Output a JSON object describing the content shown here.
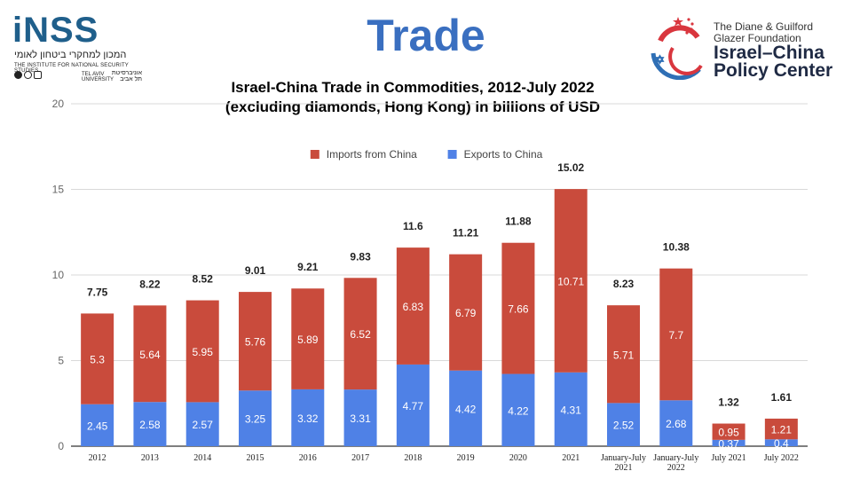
{
  "slide": {
    "heading": "Trade",
    "left_logo": {
      "mark": "iNSS",
      "hebrew": "המכון למחקרי ביטחון לאומי",
      "english": "THE INSTITUTE FOR NATIONAL SECURITY STUDIES",
      "university_en": "TEL AVIV UNIVERSITY",
      "university_he": "אוניברסיטת תל אביב"
    },
    "right_logo": {
      "foundation_line1": "The Diane & Guilford",
      "foundation_line2": "Glazer Foundation",
      "name_line1": "Israel–China",
      "name_line2": "Policy Center"
    }
  },
  "chart_data": {
    "type": "bar",
    "stacked": true,
    "title_line1": "Israel-China Trade in Commodities, 2012-July 2022",
    "title_line2": "(excluding diamonds, Hong Kong) in billions of USD",
    "categories": [
      "2012",
      "2013",
      "2014",
      "2015",
      "2016",
      "2017",
      "2018",
      "2019",
      "2020",
      "2021",
      "January-July 2021",
      "January-July 2022",
      "July 2021",
      "July 2022"
    ],
    "category_lines": [
      [
        "2012"
      ],
      [
        "2013"
      ],
      [
        "2014"
      ],
      [
        "2015"
      ],
      [
        "2016"
      ],
      [
        "2017"
      ],
      [
        "2018"
      ],
      [
        "2019"
      ],
      [
        "2020"
      ],
      [
        "2021"
      ],
      [
        "January-July",
        "2021"
      ],
      [
        "January-July",
        "2022"
      ],
      [
        "July 2021"
      ],
      [
        "July 2022"
      ]
    ],
    "series": [
      {
        "name": "Exports to China",
        "color": "#4f81e6",
        "values": [
          2.45,
          2.58,
          2.57,
          3.25,
          3.32,
          3.31,
          4.77,
          4.42,
          4.22,
          4.31,
          2.52,
          2.68,
          0.37,
          0.4
        ]
      },
      {
        "name": "Imports from China",
        "color": "#c94b3c",
        "values": [
          5.3,
          5.64,
          5.95,
          5.76,
          5.89,
          6.52,
          6.83,
          6.79,
          7.66,
          10.71,
          5.71,
          7.7,
          0.95,
          1.21
        ]
      }
    ],
    "totals": [
      7.75,
      8.22,
      8.52,
      9.01,
      9.21,
      9.83,
      11.6,
      11.21,
      11.88,
      15.02,
      8.23,
      10.38,
      1.32,
      1.61
    ],
    "legend_order": [
      "Imports from China",
      "Exports to China"
    ],
    "legend_position": "top-center",
    "ylim": [
      0,
      20
    ],
    "yticks": [
      0,
      5,
      10,
      15,
      20
    ],
    "grid": true
  }
}
